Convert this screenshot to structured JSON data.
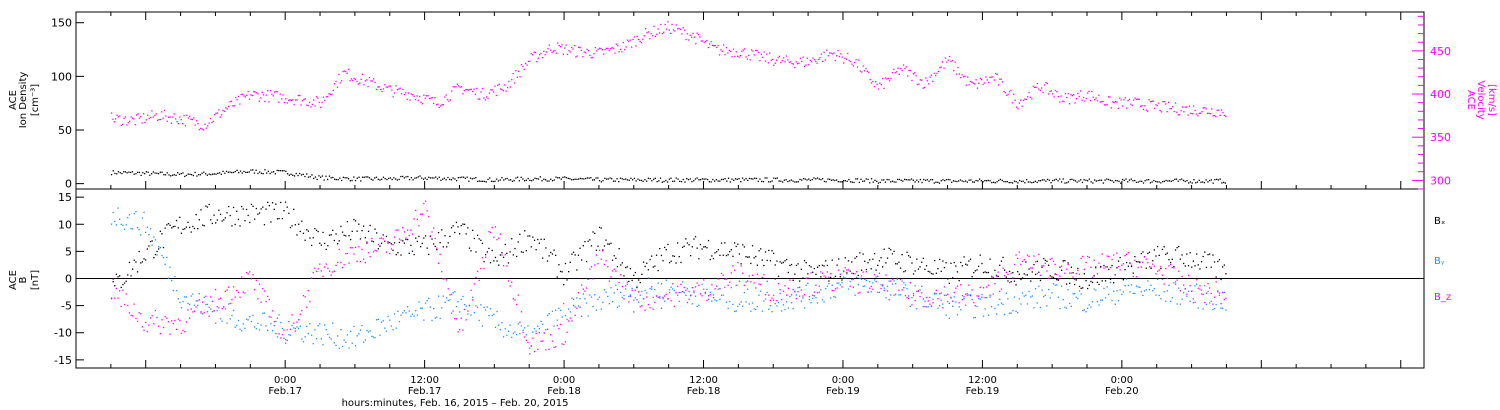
{
  "chart_data": [
    {
      "type": "scatter",
      "panel": "top",
      "ylabel_left": [
        "ACE",
        "Ion Density",
        "[cm⁻³]"
      ],
      "ylabel_right": [
        "ACE",
        "Velocity",
        "[km/s]"
      ],
      "left_axis": {
        "ylim": [
          -5,
          160
        ],
        "ticks": [
          0,
          50,
          100,
          150
        ]
      },
      "right_axis": {
        "ylim": [
          290,
          495
        ],
        "ticks": [
          300,
          350,
          400,
          450
        ],
        "color": "#ff00ff"
      },
      "series": [
        {
          "axis": "left",
          "color": "#000000",
          "x": [
            0,
            3,
            6,
            9,
            12,
            15,
            18,
            21,
            24,
            27,
            30,
            33,
            36,
            39,
            42,
            45,
            48,
            51,
            54,
            57,
            60,
            63,
            66,
            69,
            72,
            75,
            78,
            81,
            84,
            87,
            90,
            93,
            96
          ],
          "y": [
            11,
            10,
            9,
            10,
            12,
            11,
            6,
            5,
            5,
            6,
            5,
            4,
            5,
            5,
            4,
            4,
            4,
            4,
            4,
            4,
            4,
            4,
            3,
            3,
            3,
            3,
            3,
            3,
            3,
            3,
            3,
            3,
            3
          ]
        },
        {
          "axis": "right",
          "color": "#ff00ff",
          "x": [
            0,
            2,
            4,
            6,
            8,
            10,
            12,
            14,
            16,
            18,
            20,
            22,
            24,
            26,
            28,
            30,
            32,
            34,
            36,
            38,
            40,
            42,
            44,
            46,
            48,
            50,
            52,
            54,
            56,
            58,
            60,
            62,
            64,
            66,
            68,
            70,
            72,
            74,
            76,
            78,
            80,
            82,
            84,
            86,
            88,
            90,
            92,
            94,
            96
          ],
          "y": [
            372,
            370,
            376,
            372,
            365,
            385,
            400,
            398,
            395,
            390,
            425,
            415,
            405,
            400,
            390,
            408,
            400,
            410,
            440,
            455,
            450,
            448,
            455,
            470,
            478,
            468,
            452,
            450,
            443,
            438,
            438,
            448,
            438,
            408,
            430,
            413,
            440,
            410,
            420,
            390,
            410,
            395,
            400,
            390,
            390,
            386,
            383,
            382,
            380
          ]
        }
      ]
    },
    {
      "type": "scatter",
      "panel": "bottom",
      "ylabel_left": [
        "ACE",
        "B",
        "[nT]"
      ],
      "ylim": [
        -16.5,
        16.5
      ],
      "yticks": [
        -15,
        -10,
        -5,
        0,
        5,
        10,
        15
      ],
      "series": [
        {
          "name": "Bₓ",
          "color": "#000000",
          "x": [
            0,
            3,
            6,
            9,
            12,
            15,
            18,
            21,
            24,
            27,
            30,
            33,
            36,
            39,
            42,
            45,
            48,
            51,
            54,
            57,
            60,
            63,
            66,
            69,
            72,
            75,
            78,
            81,
            84,
            87,
            90,
            93,
            96
          ],
          "y": [
            -2,
            5,
            10,
            12,
            12,
            12,
            7,
            9,
            6,
            6,
            9,
            3,
            8,
            1,
            8,
            0,
            5,
            6,
            5,
            3,
            1,
            2,
            4,
            3,
            1,
            3,
            1,
            2,
            0,
            2,
            4,
            4,
            1
          ]
        },
        {
          "name": "Bᵧ",
          "color": "#1e90ff",
          "x": [
            0,
            3,
            6,
            9,
            12,
            15,
            18,
            21,
            24,
            27,
            30,
            33,
            36,
            39,
            42,
            45,
            48,
            51,
            54,
            57,
            60,
            63,
            66,
            69,
            72,
            75,
            78,
            81,
            84,
            87,
            90,
            93,
            96
          ],
          "y": [
            12,
            10,
            -3,
            -6,
            -8,
            -9,
            -10,
            -11,
            -8,
            -6,
            -4,
            -8,
            -11,
            -6,
            -4,
            -2,
            -2,
            -3,
            -4,
            -4,
            -3,
            -1,
            -1,
            -3,
            -5,
            -5,
            -4,
            -3,
            -4,
            -2,
            -2,
            -3,
            -4
          ]
        },
        {
          "name": "B_z",
          "color": "#ff00ff",
          "x": [
            0,
            3,
            6,
            9,
            12,
            15,
            18,
            21,
            24,
            27,
            30,
            33,
            36,
            39,
            42,
            45,
            48,
            51,
            54,
            57,
            60,
            63,
            66,
            69,
            72,
            75,
            78,
            81,
            84,
            87,
            90,
            93,
            96
          ],
          "y": [
            -2,
            -8,
            -8,
            -4,
            0,
            -11,
            2,
            5,
            6,
            13,
            -10,
            10,
            -12,
            -10,
            4,
            -4,
            -3,
            -2,
            1,
            -2,
            -1,
            0,
            -1,
            -3,
            -3,
            -3,
            3,
            2,
            2,
            3,
            2,
            -2,
            -3
          ]
        }
      ]
    }
  ],
  "x_axis": {
    "ticks": [
      {
        "time": "0:00",
        "date": "Feb.17"
      },
      {
        "time": "12:00",
        "date": "Feb.17"
      },
      {
        "time": "0:00",
        "date": "Feb.18"
      },
      {
        "time": "12:00",
        "date": "Feb.18"
      },
      {
        "time": "0:00",
        "date": "Feb.19"
      },
      {
        "time": "12:00",
        "date": "Feb.19"
      },
      {
        "time": "0:00",
        "date": "Feb.20"
      }
    ],
    "label": "hours:minutes, Feb. 16, 2015 – Feb. 20, 2015"
  },
  "legend": [
    {
      "text": "Bₓ",
      "color": "#000000"
    },
    {
      "text": "Bᵧ",
      "color": "#1e90ff"
    },
    {
      "text": "B_z",
      "color": "#ff00ff"
    }
  ]
}
